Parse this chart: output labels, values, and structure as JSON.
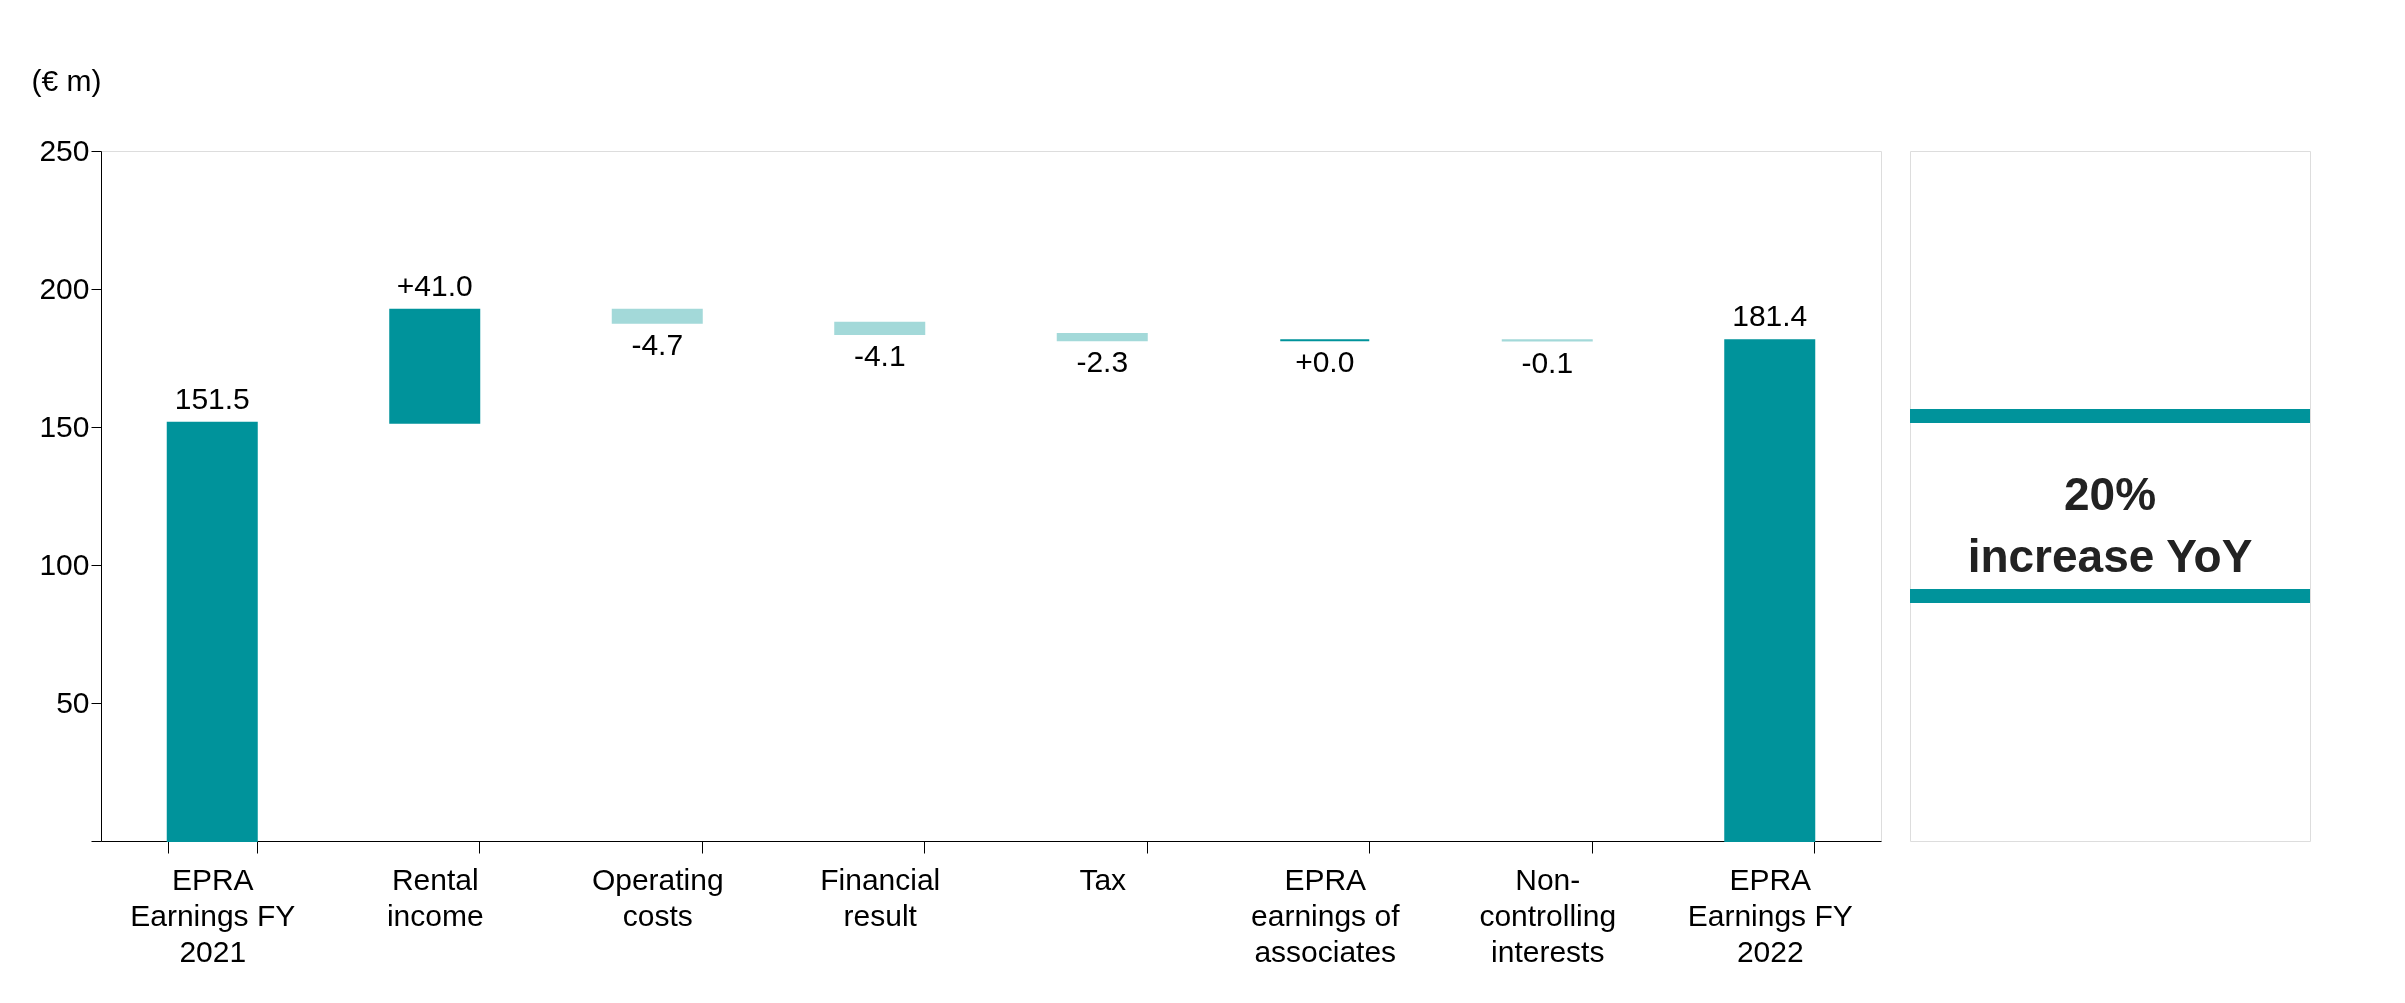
{
  "chart_data": {
    "type": "bar",
    "ylabel": "(€ m)",
    "categories": [
      "EPRA Earnings FY 2021",
      "Rental income",
      "Operating costs",
      "Financial result",
      "Tax",
      "EPRA earnings of associates",
      "Non-controlling interests",
      "EPRA Earnings FY 2022"
    ],
    "values": [
      151.5,
      41.0,
      -4.7,
      -4.1,
      -2.3,
      0.0,
      -0.1,
      181.4
    ],
    "base": [
      0,
      151.5,
      192.5,
      187.8,
      183.7,
      181.4,
      181.4,
      0
    ],
    "colors": [
      "#00939b",
      "#00939b",
      "#a3d9d9",
      "#a3d9d9",
      "#a3d9d9",
      "#00939b",
      "#a3d9d9",
      "#00939b"
    ],
    "value_labels": [
      "151.5",
      "+41.0",
      "-4.7",
      "-4.1",
      "-2.3",
      "+0.0",
      "-0.1",
      "181.4"
    ],
    "ylim": [
      0,
      250
    ],
    "yticks": [
      {
        "value": 0,
        "label": null
      },
      50,
      100,
      150,
      200,
      250
    ],
    "grid": false,
    "annotations": [
      "20%\nincrease YoY"
    ]
  }
}
